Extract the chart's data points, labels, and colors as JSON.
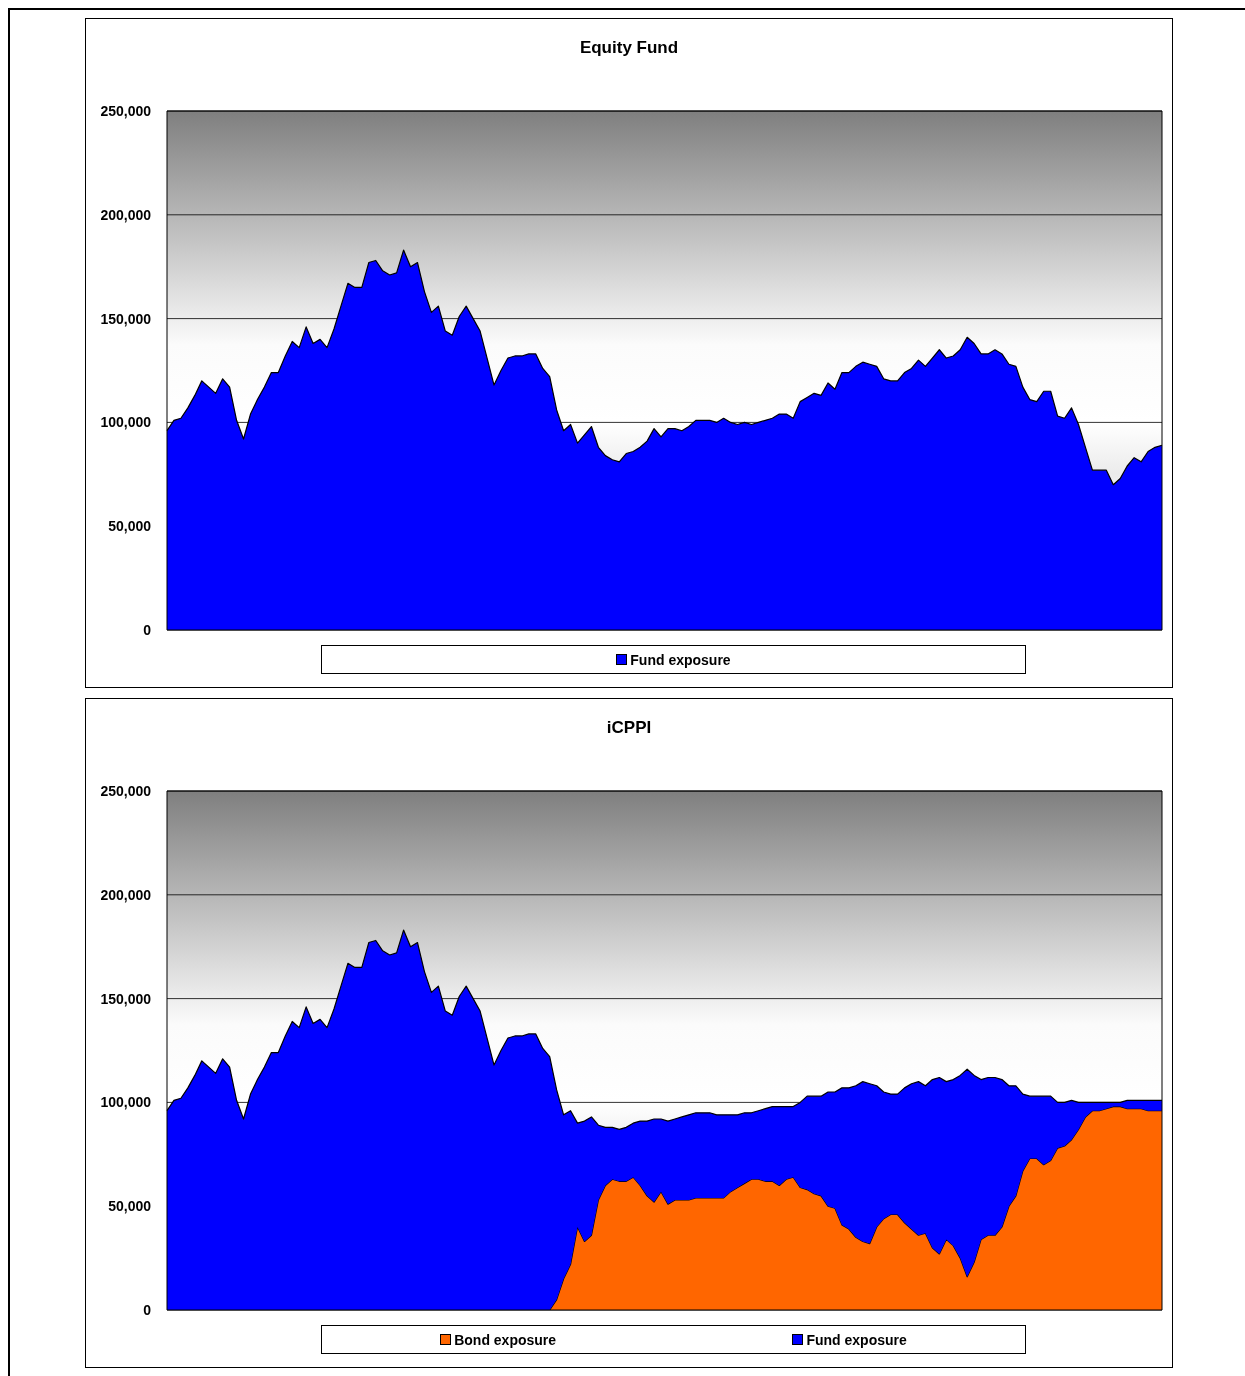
{
  "chart_data": [
    {
      "type": "area",
      "title": "Equity Fund",
      "categories": [
        null,
        null,
        null,
        null,
        null,
        null,
        null,
        null,
        null,
        null,
        null,
        null,
        null,
        null,
        null,
        null,
        null,
        null,
        null,
        null,
        null,
        null,
        null,
        null,
        null,
        null,
        null,
        null,
        null,
        null,
        null,
        null,
        null,
        null,
        null,
        null,
        null,
        null,
        null,
        null,
        null,
        null,
        null,
        null,
        null,
        null,
        null,
        null,
        null,
        null,
        null,
        null,
        null,
        null,
        null,
        null,
        null,
        null,
        null,
        null,
        null,
        null,
        null,
        null,
        null,
        null,
        null,
        null,
        null,
        null,
        null,
        null,
        null,
        null,
        null,
        null,
        null,
        null,
        null,
        null,
        null,
        null,
        null,
        null,
        null,
        null,
        null,
        null,
        null,
        null,
        null,
        null,
        null,
        null,
        null,
        null,
        null,
        null,
        null,
        null,
        null,
        null,
        null,
        null,
        null,
        null,
        null,
        null,
        null,
        null,
        null,
        null,
        null,
        null,
        null,
        null,
        null,
        null,
        null,
        null,
        null,
        null,
        null,
        null,
        null,
        null,
        null,
        null,
        null,
        null,
        null,
        null,
        null,
        null,
        null,
        null,
        null,
        null,
        null,
        null,
        null,
        null,
        null,
        null
      ],
      "series": [
        {
          "name": "Fund exposure",
          "color": "#0000ff",
          "values": [
            96000,
            101000,
            102000,
            107000,
            113000,
            120000,
            117000,
            114000,
            121000,
            117000,
            101000,
            92000,
            104000,
            111000,
            117000,
            124000,
            124000,
            132000,
            139000,
            136000,
            146000,
            138000,
            140000,
            136000,
            145000,
            156000,
            167000,
            165000,
            165000,
            177000,
            178000,
            173000,
            171000,
            172000,
            183000,
            175000,
            177000,
            163000,
            153000,
            156000,
            144000,
            142000,
            151000,
            156000,
            150000,
            144000,
            131000,
            118000,
            125000,
            131000,
            132000,
            132000,
            133000,
            133000,
            126000,
            122000,
            106000,
            96000,
            99000,
            90000,
            94000,
            98000,
            88000,
            84000,
            82000,
            81000,
            85000,
            86000,
            88000,
            91000,
            97000,
            93000,
            97000,
            97000,
            96000,
            98000,
            101000,
            101000,
            101000,
            100000,
            102000,
            100000,
            99000,
            100000,
            99000,
            100000,
            101000,
            102000,
            104000,
            104000,
            102000,
            110000,
            112000,
            114000,
            113000,
            119000,
            116000,
            124000,
            124000,
            127000,
            129000,
            128000,
            127000,
            121000,
            120000,
            120000,
            124000,
            126000,
            130000,
            127000,
            131000,
            135000,
            131000,
            132000,
            135000,
            141000,
            138000,
            133000,
            133000,
            135000,
            133000,
            128000,
            127000,
            117000,
            111000,
            110000,
            115000,
            115000,
            103000,
            102000,
            107000,
            99000,
            88000,
            77000,
            77000,
            77000,
            70000,
            73000,
            79000,
            83000,
            81000,
            86000,
            88000,
            89000
          ]
        }
      ],
      "ylim": [
        0,
        250000
      ],
      "yticks": [
        0,
        {
          "value": 50000,
          "label": "50,000"
        },
        {
          "value": 100000,
          "label": "100,000"
        },
        {
          "value": 150000,
          "label": "150,000"
        },
        {
          "value": 200000,
          "label": "200,000"
        },
        {
          "value": 250000,
          "label": "250,000"
        }
      ],
      "grid": "y",
      "legend": "bottom"
    },
    {
      "type": "area",
      "title": "iCPPI",
      "stacked": true,
      "categories": [
        null,
        null,
        null,
        null,
        null,
        null,
        null,
        null,
        null,
        null,
        null,
        null,
        null,
        null,
        null,
        null,
        null,
        null,
        null,
        null,
        null,
        null,
        null,
        null,
        null,
        null,
        null,
        null,
        null,
        null,
        null,
        null,
        null,
        null,
        null,
        null,
        null,
        null,
        null,
        null,
        null,
        null,
        null,
        null,
        null,
        null,
        null,
        null,
        null,
        null,
        null,
        null,
        null,
        null,
        null,
        null,
        null,
        null,
        null,
        null,
        null,
        null,
        null,
        null,
        null,
        null,
        null,
        null,
        null,
        null,
        null,
        null,
        null,
        null,
        null,
        null,
        null,
        null,
        null,
        null,
        null,
        null,
        null,
        null,
        null,
        null,
        null,
        null,
        null,
        null,
        null,
        null,
        null,
        null,
        null,
        null,
        null,
        null,
        null,
        null,
        null,
        null,
        null,
        null,
        null,
        null,
        null,
        null,
        null,
        null,
        null,
        null,
        null,
        null,
        null,
        null,
        null,
        null,
        null,
        null,
        null,
        null,
        null,
        null,
        null,
        null,
        null,
        null,
        null,
        null,
        null,
        null,
        null,
        null,
        null,
        null,
        null,
        null,
        null,
        null,
        null,
        null,
        null,
        null
      ],
      "series": [
        {
          "name": "Bond exposure",
          "color": "#ff6600",
          "values": [
            0,
            0,
            0,
            0,
            0,
            0,
            0,
            0,
            0,
            0,
            0,
            0,
            0,
            0,
            0,
            0,
            0,
            0,
            0,
            0,
            0,
            0,
            0,
            0,
            0,
            0,
            0,
            0,
            0,
            0,
            0,
            0,
            0,
            0,
            0,
            0,
            0,
            0,
            0,
            0,
            0,
            0,
            0,
            0,
            0,
            0,
            0,
            0,
            0,
            0,
            0,
            0,
            0,
            0,
            0,
            0,
            5000,
            15000,
            22000,
            40000,
            33000,
            36000,
            53000,
            60000,
            63000,
            62000,
            62000,
            64000,
            60000,
            55000,
            52000,
            57000,
            51000,
            53000,
            53000,
            53000,
            54000,
            54000,
            54000,
            54000,
            54000,
            57000,
            59000,
            61000,
            63000,
            63000,
            62000,
            62000,
            60000,
            63000,
            64000,
            59000,
            58000,
            56000,
            55000,
            50000,
            49000,
            41000,
            39000,
            35000,
            33000,
            32000,
            40000,
            44000,
            46000,
            46000,
            42000,
            39000,
            36000,
            37000,
            30000,
            27000,
            34000,
            31000,
            25000,
            16000,
            23000,
            34000,
            36000,
            36000,
            40000,
            50000,
            55000,
            67000,
            73000,
            73000,
            70000,
            72000,
            78000,
            79000,
            82000,
            87000,
            93000,
            96000,
            96000,
            97000,
            98000,
            98000,
            97000,
            97000,
            97000,
            96000,
            96000,
            96000
          ]
        },
        {
          "name": "Fund exposure",
          "color": "#0000ff",
          "values": [
            96000,
            101000,
            102000,
            107000,
            113000,
            120000,
            117000,
            114000,
            121000,
            117000,
            101000,
            92000,
            104000,
            111000,
            117000,
            124000,
            124000,
            132000,
            139000,
            136000,
            146000,
            138000,
            140000,
            136000,
            145000,
            156000,
            167000,
            165000,
            165000,
            177000,
            178000,
            173000,
            171000,
            172000,
            183000,
            175000,
            177000,
            163000,
            153000,
            156000,
            144000,
            142000,
            151000,
            156000,
            150000,
            144000,
            131000,
            118000,
            125000,
            131000,
            132000,
            132000,
            133000,
            133000,
            126000,
            122000,
            101000,
            79000,
            74000,
            50000,
            58000,
            57000,
            36000,
            28000,
            25000,
            25000,
            26000,
            26000,
            31000,
            36000,
            40000,
            35000,
            40000,
            39000,
            40000,
            41000,
            41000,
            41000,
            41000,
            40000,
            40000,
            37000,
            35000,
            34000,
            32000,
            33000,
            35000,
            36000,
            38000,
            35000,
            34000,
            41000,
            45000,
            47000,
            48000,
            55000,
            56000,
            66000,
            68000,
            73000,
            77000,
            77000,
            68000,
            61000,
            58000,
            58000,
            65000,
            70000,
            74000,
            71000,
            81000,
            85000,
            76000,
            80000,
            88000,
            100000,
            90000,
            77000,
            76000,
            76000,
            71000,
            58000,
            53000,
            37000,
            30000,
            30000,
            33000,
            31000,
            22000,
            21000,
            19000,
            13000,
            7000,
            4000,
            4000,
            3000,
            2000,
            2000,
            4000,
            4000,
            4000,
            5000,
            5000,
            5000
          ]
        }
      ],
      "ylim": [
        0,
        250000
      ],
      "yticks": [
        0,
        {
          "value": 50000,
          "label": "50,000"
        },
        {
          "value": 100000,
          "label": "100,000"
        },
        {
          "value": 150000,
          "label": "150,000"
        },
        {
          "value": 200000,
          "label": "200,000"
        },
        {
          "value": 250000,
          "label": "250,000"
        }
      ],
      "grid": "y",
      "legend": "bottom"
    }
  ]
}
